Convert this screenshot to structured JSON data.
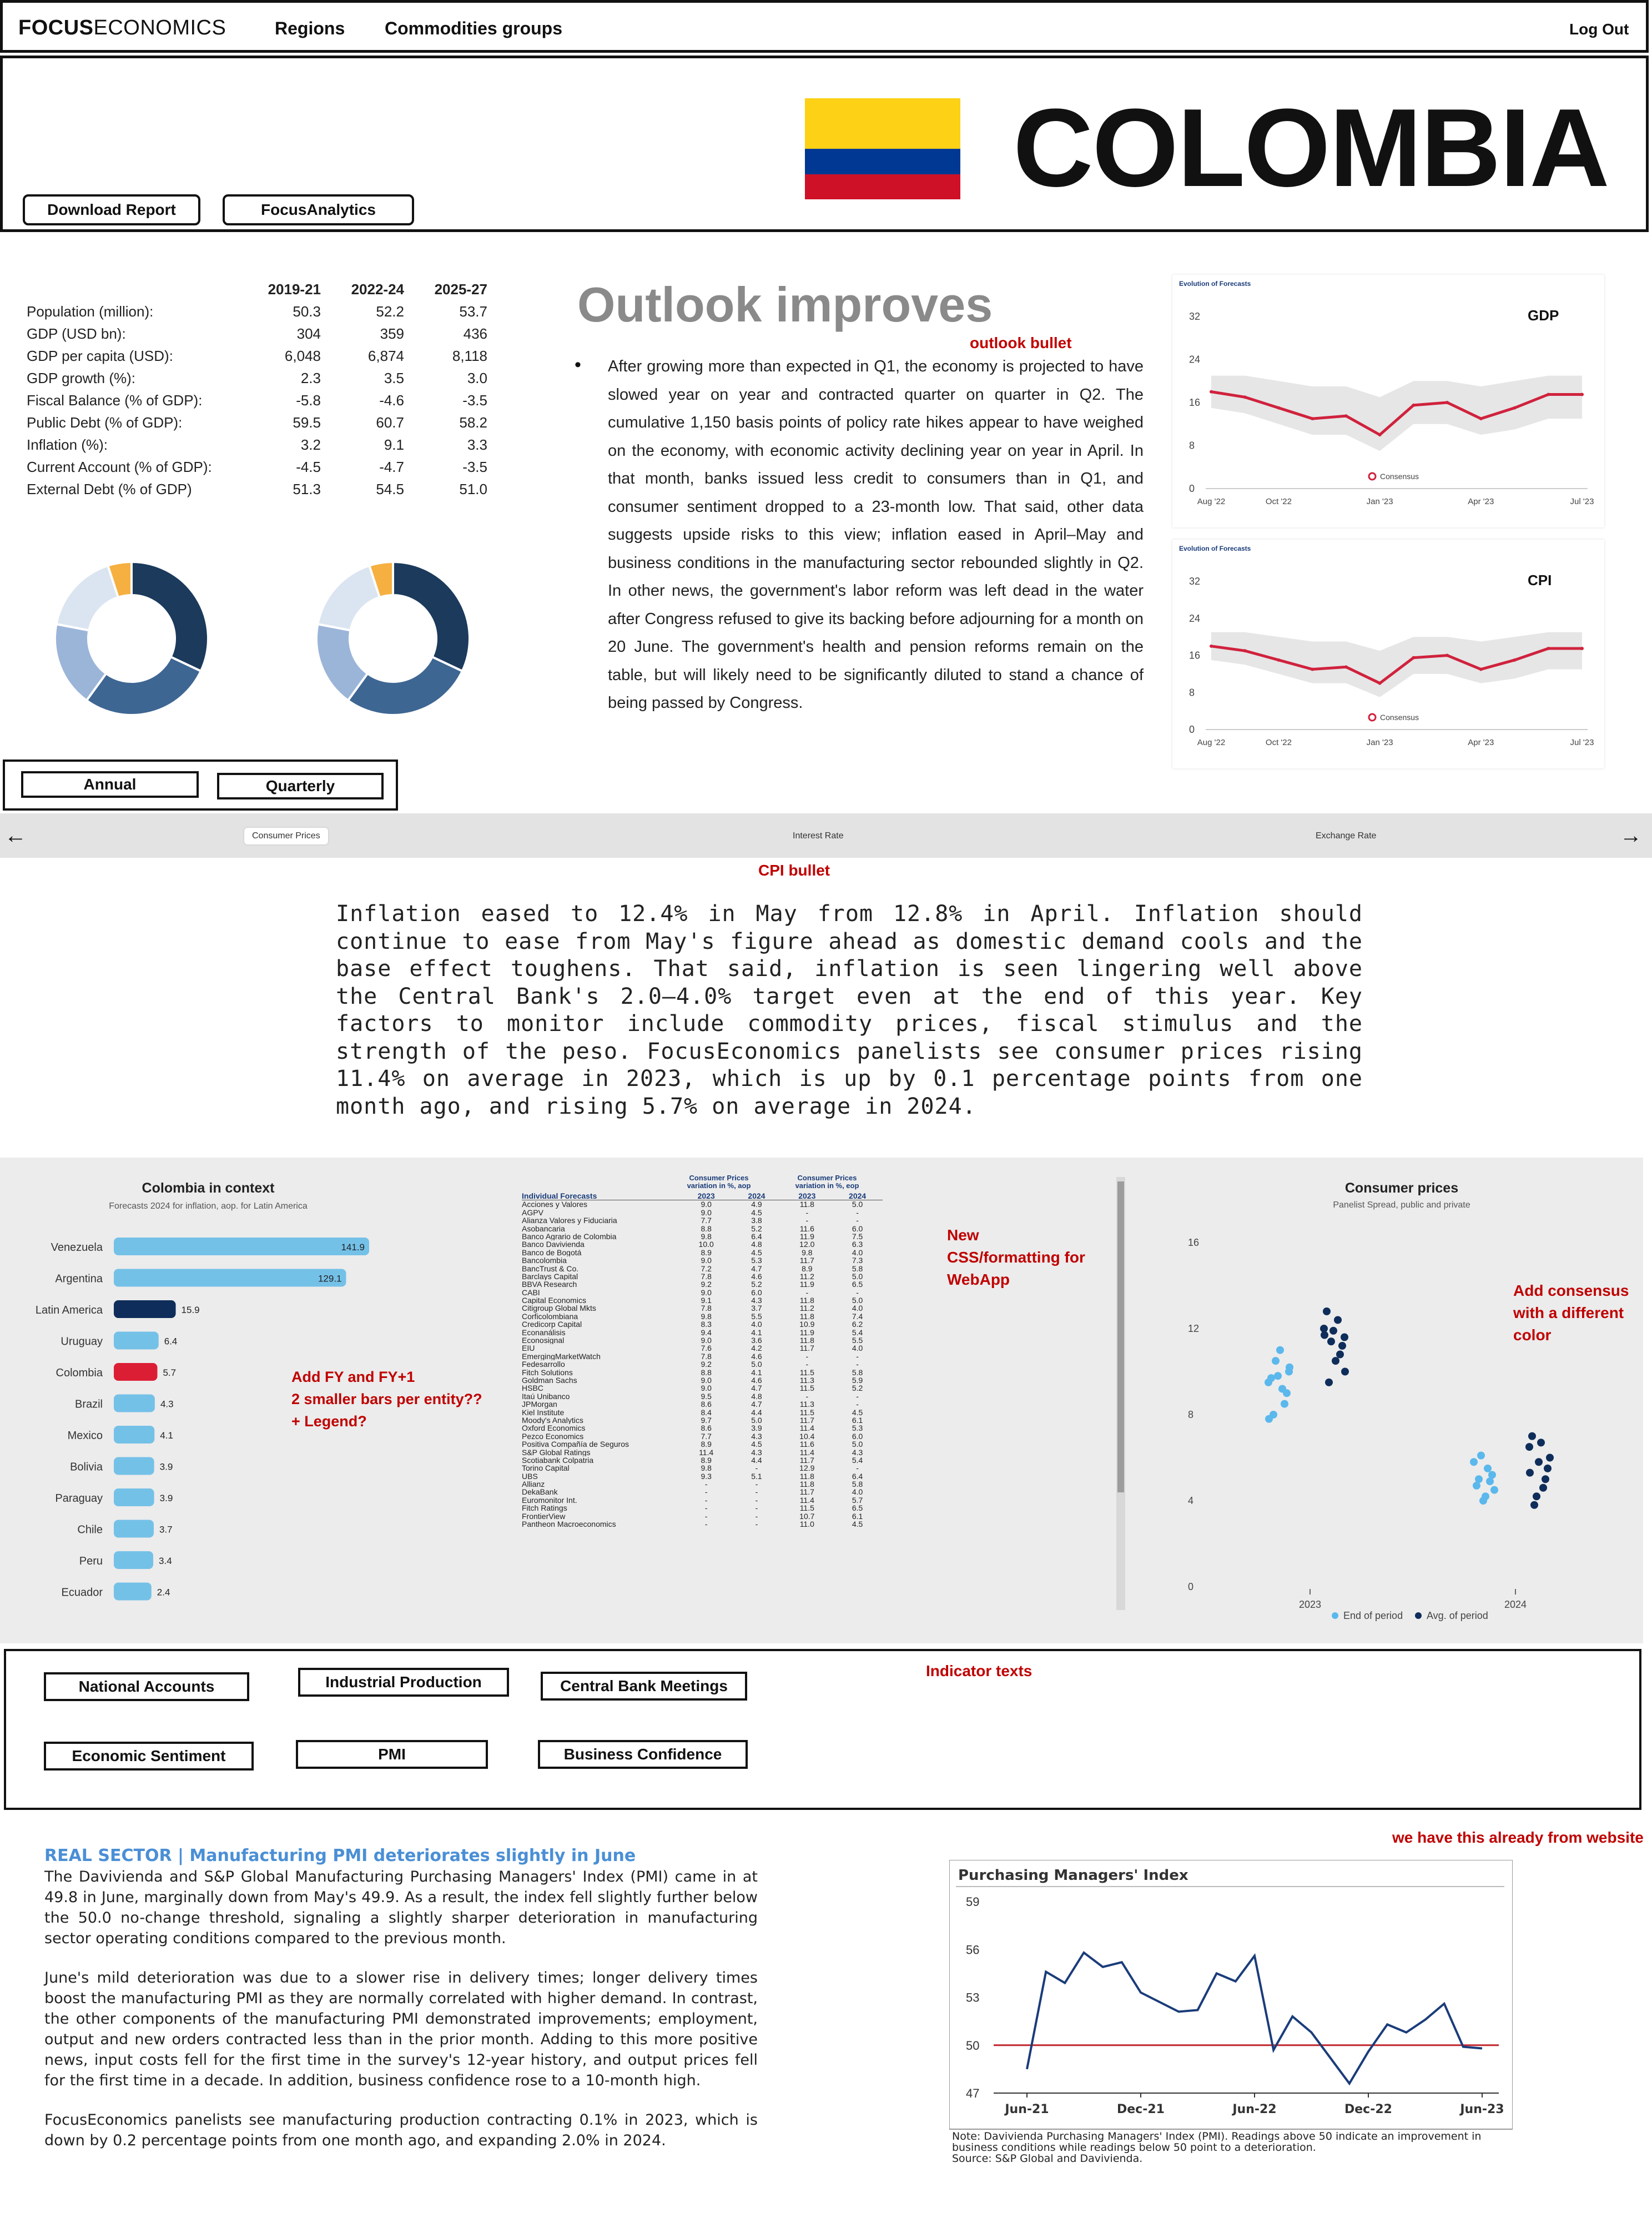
{
  "nav": {
    "logo_bold": "FOCUS",
    "logo_light": "ECONOMICS",
    "regions": "Regions",
    "commodities": "Commodities groups",
    "logout": "Log Out"
  },
  "header": {
    "country": "COLOMBIA",
    "download_btn": "Download Report",
    "analytics_btn": "FocusAnalytics"
  },
  "stats": {
    "periods": [
      "2019-21",
      "2022-24",
      "2025-27"
    ],
    "rows": [
      {
        "label": "Population (million):",
        "vals": [
          "50.3",
          "52.2",
          "53.7"
        ]
      },
      {
        "label": "GDP (USD bn):",
        "vals": [
          "304",
          "359",
          "436"
        ]
      },
      {
        "label": "GDP per capita (USD):",
        "vals": [
          "6,048",
          "6,874",
          "8,118"
        ]
      },
      {
        "label": "GDP growth (%):",
        "vals": [
          "2.3",
          "3.5",
          "3.0"
        ]
      },
      {
        "label": "Fiscal Balance (% of GDP):",
        "vals": [
          "-5.8",
          "-4.6",
          "-3.5"
        ]
      },
      {
        "label": "Public Debt (% of GDP):",
        "vals": [
          "59.5",
          "60.7",
          "58.2"
        ]
      },
      {
        "label": "Inflation (%):",
        "vals": [
          "3.2",
          "9.1",
          "3.3"
        ]
      },
      {
        "label": "Current Account (% of GDP):",
        "vals": [
          "-4.5",
          "-4.7",
          "-3.5"
        ]
      },
      {
        "label": "External Debt (% of GDP)",
        "vals": [
          "51.3",
          "54.5",
          "51.0"
        ]
      }
    ]
  },
  "outlook": {
    "title": "Outlook improves",
    "note": "outlook bullet",
    "bullet": "•",
    "text": "After growing more than expected in Q1, the economy is projected to have slowed year on year and contracted quarter on quarter in Q2. The cumulative 1,150 basis points of policy rate hikes appear to have weighed on the economy, with economic activity declining year on year in April. In that month, banks issued less credit to consumers than in Q1, and consumer sentiment dropped to a 23-month low. That said, other data suggests upside risks to this view; inflation eased in April–May and business conditions in the manufacturing sector rebounded slightly in Q2. In other news, the government's labor reform was left dead in the water after Congress refused to give its backing before adjourning for a month on 20 June. The government's health and pension reforms remain on the table, but will likely need to be significantly diluted to stand a chance of being passed by Congress."
  },
  "period_buttons": {
    "annual": "Annual",
    "quarterly": "Quarterly"
  },
  "tabs": {
    "left_arrow": "←",
    "right_arrow": "→",
    "items": [
      "Consumer Prices",
      "Interest Rate",
      "Exchange Rate"
    ]
  },
  "cpi": {
    "note": "CPI bullet",
    "text": "Inflation eased to 12.4% in May from 12.8% in April. Inflation should continue to ease from May's figure ahead as domestic demand cools and the base effect toughens. That said, inflation is seen lingering well above the Central Bank's 2.0—4.0% target even at the end of this year. Key factors to monitor include commodity prices, fiscal stimulus and the strength of the peso. FocusEconomics panelists see consumer prices rising 11.4% on average in 2023, which is up by 0.1 percentage points from one month ago, and rising 5.7% on average in 2024."
  },
  "notes": {
    "add_fy": "Add FY and FY+1\n2 smaller bars per entity??\n+ Legend?",
    "new_css": "New\nCSS/formatting for\nWebApp",
    "add_consensus": "Add consensus\nwith a different\ncolor",
    "indicator_texts": "Indicator texts",
    "have_already": "we have this already from website"
  },
  "indicator_buttons": [
    "National Accounts",
    "Industrial Production",
    "Central Bank Meetings",
    "Economic Sentiment",
    "PMI",
    "Business Confidence"
  ],
  "real_sector": {
    "headline": "REAL SECTOR | Manufacturing PMI deteriorates slightly in June",
    "p1": "The Davivienda and S&P Global Manufacturing Purchasing Managers' Index (PMI) came in at 49.8 in June, marginally down from May's 49.9. As a result, the index fell slightly further below the 50.0 no-change threshold, signaling a slightly sharper deterioration in manufacturing sector operating conditions compared to the previous month.",
    "p2": "June's mild deterioration was due to a slower rise in delivery times; longer delivery times boost the manufacturing PMI as they are normally correlated with higher demand. In contrast, the other components of the manufacturing PMI demonstrated improvements; employment, output and new orders contracted less than in the prior month. Adding to this more positive news, input costs fell for the first time in the survey's 12-year history, and output prices fell for the first time in a decade. In addition, business confidence rose to a 10-month high.",
    "p3": "FocusEconomics panelists see manufacturing production contracting 0.1% in 2023, which is down by 0.2 percentage points from one month ago, and expanding 2.0% in 2024."
  },
  "flag": {
    "yellow": "#fcd116",
    "blue": "#003893",
    "red": "#ce1126"
  },
  "chart_data": [
    {
      "type": "pie",
      "name": "donut-left",
      "values": [
        32,
        28,
        18,
        17,
        5
      ],
      "colors": [
        "#1b3a5c",
        "#3e6693",
        "#9bb5d8",
        "#dbe5f1",
        "#f5b041"
      ]
    },
    {
      "type": "pie",
      "name": "donut-right",
      "values": [
        32,
        28,
        18,
        17,
        5
      ],
      "colors": [
        "#1b3a5c",
        "#3e6693",
        "#9bb5d8",
        "#dbe5f1",
        "#f5b041"
      ]
    },
    {
      "type": "line",
      "title": "Evolution of Forecasts",
      "label": "GDP",
      "x_ticks": [
        "Aug '22",
        "Oct '22",
        "Jan '23",
        "Apr '23",
        "Jul '23"
      ],
      "y_ticks": [
        0,
        8,
        16,
        24,
        32
      ],
      "ylim": [
        0,
        32
      ],
      "x": [
        "Aug '22",
        "Sep '22",
        "Oct '22",
        "Nov '22",
        "Dec '22",
        "Jan '23",
        "Feb '23",
        "Mar '23",
        "Apr '23",
        "May '23",
        "Jun '23",
        "Jul '23"
      ],
      "series": [
        {
          "name": "Consensus",
          "values": [
            18,
            17,
            15,
            13,
            13.5,
            10,
            15.5,
            16,
            13,
            15,
            17.5,
            17.5
          ],
          "low": [
            15,
            14,
            12,
            10,
            10,
            7,
            12,
            12,
            10,
            11,
            13,
            13
          ],
          "high": [
            21,
            21,
            20,
            19,
            19,
            17,
            20,
            20,
            19,
            20,
            21,
            21
          ]
        }
      ],
      "legend": "bottom-center"
    },
    {
      "type": "line",
      "title": "Evolution of Forecasts",
      "label": "CPI",
      "x_ticks": [
        "Aug '22",
        "Oct '22",
        "Jan '23",
        "Apr '23",
        "Jul '23"
      ],
      "y_ticks": [
        0,
        8,
        16,
        24,
        32
      ],
      "ylim": [
        0,
        32
      ],
      "x": [
        "Aug '22",
        "Sep '22",
        "Oct '22",
        "Nov '22",
        "Dec '22",
        "Jan '23",
        "Feb '23",
        "Mar '23",
        "Apr '23",
        "May '23",
        "Jun '23",
        "Jul '23"
      ],
      "series": [
        {
          "name": "Consensus",
          "values": [
            18,
            17,
            15,
            13,
            13.5,
            10,
            15.5,
            16,
            13,
            15,
            17.5,
            17.5
          ],
          "low": [
            15,
            14,
            12,
            10,
            10,
            7,
            12,
            12,
            10,
            11,
            13,
            13
          ],
          "high": [
            21,
            21,
            20,
            19,
            19,
            17,
            20,
            20,
            19,
            20,
            21,
            21
          ]
        }
      ],
      "legend": "bottom-center"
    },
    {
      "type": "bar",
      "title": "Colombia in context",
      "subtitle": "Forecasts 2024 for inflation, aop. for Latin America",
      "categories": [
        "Venezuela",
        "Argentina",
        "Latin America",
        "Uruguay",
        "Colombia",
        "Brazil",
        "Mexico",
        "Bolivia",
        "Paraguay",
        "Chile",
        "Peru",
        "Ecuador"
      ],
      "values": [
        141.9,
        129.1,
        15.9,
        6.4,
        5.7,
        4.3,
        4.1,
        3.9,
        3.9,
        3.7,
        3.4,
        2.4
      ],
      "labels": [
        "141.9",
        "129.1",
        "15.9",
        "6.4",
        "5.7",
        "4.3",
        "4.1",
        "3.9",
        "3.9",
        "3.7",
        "3.4",
        "2.4"
      ],
      "highlight": {
        "Latin America": "#0e2d5a",
        "Colombia": "#dc1e35"
      },
      "color": "#74c1e8"
    },
    {
      "type": "table",
      "title": "Individual Forecasts",
      "group_headers": [
        "Consumer Prices\nvariation in %, aop",
        "Consumer Prices\nvariation in %, eop"
      ],
      "columns": [
        "2023",
        "2024",
        "2023",
        "2024"
      ],
      "rows": [
        [
          "Acciones y Valores",
          "9.0",
          "4.9",
          "11.8",
          "5.0"
        ],
        [
          "AGPV",
          "9.0",
          "4.5",
          "-",
          "-"
        ],
        [
          "Alianza Valores y Fiduciaria",
          "7.7",
          "3.8",
          "-",
          "-"
        ],
        [
          "Asobancaria",
          "8.8",
          "5.2",
          "11.6",
          "6.0"
        ],
        [
          "Banco Agrario de Colombia",
          "9.8",
          "6.4",
          "11.9",
          "7.5"
        ],
        [
          "Banco Davivienda",
          "10.0",
          "4.8",
          "12.0",
          "6.3"
        ],
        [
          "Banco de Bogotá",
          "8.9",
          "4.5",
          "9.8",
          "4.0"
        ],
        [
          "Bancolombia",
          "9.0",
          "5.3",
          "11.7",
          "7.3"
        ],
        [
          "BancTrust & Co.",
          "7.2",
          "4.7",
          "8.9",
          "5.8"
        ],
        [
          "Barclays Capital",
          "7.8",
          "4.6",
          "11.2",
          "5.0"
        ],
        [
          "BBVA Research",
          "9.2",
          "5.2",
          "11.9",
          "6.5"
        ],
        [
          "CABI",
          "9.0",
          "6.0",
          "-",
          "-"
        ],
        [
          "Capital Economics",
          "9.1",
          "4.3",
          "11.8",
          "5.0"
        ],
        [
          "Citigroup Global Mkts",
          "7.8",
          "3.7",
          "11.2",
          "4.0"
        ],
        [
          "Corficolombiana",
          "9.8",
          "5.5",
          "11.8",
          "7.4"
        ],
        [
          "Credicorp Capital",
          "8.3",
          "4.0",
          "10.9",
          "6.2"
        ],
        [
          "Econanálisis",
          "9.4",
          "4.1",
          "11.9",
          "5.4"
        ],
        [
          "Econosignal",
          "9.0",
          "3.6",
          "11.8",
          "5.5"
        ],
        [
          "EIU",
          "7.6",
          "4.2",
          "11.7",
          "4.0"
        ],
        [
          "EmergingMarketWatch",
          "7.8",
          "4.6",
          "-",
          "-"
        ],
        [
          "Fedesarrollo",
          "9.2",
          "5.0",
          "-",
          "-"
        ],
        [
          "Fitch Solutions",
          "8.8",
          "4.1",
          "11.5",
          "5.8"
        ],
        [
          "Goldman Sachs",
          "9.0",
          "4.6",
          "11.3",
          "5.9"
        ],
        [
          "HSBC",
          "9.0",
          "4.7",
          "11.5",
          "5.2"
        ],
        [
          "Itaú Unibanco",
          "9.5",
          "4.8",
          "-",
          "-"
        ],
        [
          "JPMorgan",
          "8.6",
          "4.7",
          "11.3",
          "-"
        ],
        [
          "Kiel Institute",
          "8.4",
          "4.4",
          "11.5",
          "4.5"
        ],
        [
          "Moody's Analytics",
          "9.7",
          "5.0",
          "11.7",
          "6.1"
        ],
        [
          "Oxford Economics",
          "8.6",
          "3.9",
          "11.4",
          "5.3"
        ],
        [
          "Pezco Economics",
          "7.7",
          "4.3",
          "10.4",
          "6.0"
        ],
        [
          "Positiva Compañía de Seguros",
          "8.9",
          "4.5",
          "11.6",
          "5.0"
        ],
        [
          "S&P Global Ratings",
          "11.4",
          "4.3",
          "11.4",
          "4.3"
        ],
        [
          "Scotiabank Colpatria",
          "8.9",
          "4.4",
          "11.7",
          "5.4"
        ],
        [
          "Torino Capital",
          "9.8",
          "-",
          "12.9",
          "-"
        ],
        [
          "UBS",
          "9.3",
          "5.1",
          "11.8",
          "6.4"
        ],
        [
          "Allianz",
          "-",
          "-",
          "11.8",
          "5.8"
        ],
        [
          "DekaBank",
          "-",
          "-",
          "11.7",
          "4.0"
        ],
        [
          "Euromonitor Int.",
          "-",
          "-",
          "11.4",
          "5.7"
        ],
        [
          "Fitch Ratings",
          "-",
          "-",
          "11.5",
          "6.5"
        ],
        [
          "FrontierView",
          "-",
          "-",
          "10.7",
          "6.1"
        ],
        [
          "Pantheon Macroeconomics",
          "-",
          "-",
          "11.0",
          "4.5"
        ]
      ]
    },
    {
      "type": "scatter",
      "title": "Consumer prices",
      "subtitle": "Panelist Spread, public and private",
      "categories": [
        "2023",
        "2024"
      ],
      "y_ticks": [
        0,
        4,
        8,
        12,
        16
      ],
      "ylim": [
        0,
        16
      ],
      "series": [
        {
          "name": "End of period",
          "color": "#5bb8ec",
          "values_2023": [
            9.5,
            10.0,
            9.0,
            8.5,
            9.2,
            11.0,
            9.8,
            10.5,
            8.0,
            9.7,
            7.8,
            10.2
          ],
          "values_2024": [
            5.8,
            4.5,
            5.2,
            4.9,
            5.5,
            4.2,
            4.0,
            6.1,
            5.0,
            4.7
          ]
        },
        {
          "name": "Avg. of period",
          "color": "#0e2d5a",
          "values_2023": [
            12.0,
            11.6,
            11.2,
            10.8,
            12.4,
            10.5,
            11.9,
            11.4,
            9.5,
            12.8,
            11.7,
            10.0
          ],
          "values_2024": [
            6.5,
            6.0,
            5.5,
            5.0,
            4.6,
            6.7,
            5.8,
            4.2,
            3.8,
            7.0,
            5.3
          ]
        }
      ],
      "legend": "bottom-center"
    },
    {
      "type": "line",
      "title": "Purchasing Managers' Index",
      "x_ticks": [
        "Jun-21",
        "Dec-21",
        "Jun-22",
        "Dec-22",
        "Jun-23"
      ],
      "y_ticks": [
        47,
        50,
        53,
        56,
        59
      ],
      "ylim": [
        47,
        59
      ],
      "x": [
        "Jun-21",
        "Jul-21",
        "Aug-21",
        "Sep-21",
        "Oct-21",
        "Nov-21",
        "Dec-21",
        "Jan-22",
        "Feb-22",
        "Mar-22",
        "Apr-22",
        "May-22",
        "Jun-22",
        "Jul-22",
        "Aug-22",
        "Sep-22",
        "Oct-22",
        "Nov-22",
        "Dec-22",
        "Jan-23",
        "Feb-23",
        "Mar-23",
        "Apr-23",
        "May-23",
        "Jun-23"
      ],
      "series": [
        {
          "name": "PMI",
          "values": [
            48.5,
            54.6,
            53.9,
            55.8,
            54.9,
            55.2,
            53.3,
            52.7,
            52.1,
            52.2,
            54.5,
            54.0,
            55.6,
            49.7,
            51.8,
            50.8,
            49.2,
            47.6,
            49.6,
            51.3,
            50.8,
            51.6,
            52.6,
            49.9,
            49.8
          ]
        }
      ],
      "reference_line": 50,
      "note": "Note: Davivienda Purchasing Managers' Index (PMI). Readings above 50 indicate an improvement in business conditions while readings below 50 point to a deterioration.",
      "source": "Source: S&P Global and Davivienda."
    }
  ]
}
